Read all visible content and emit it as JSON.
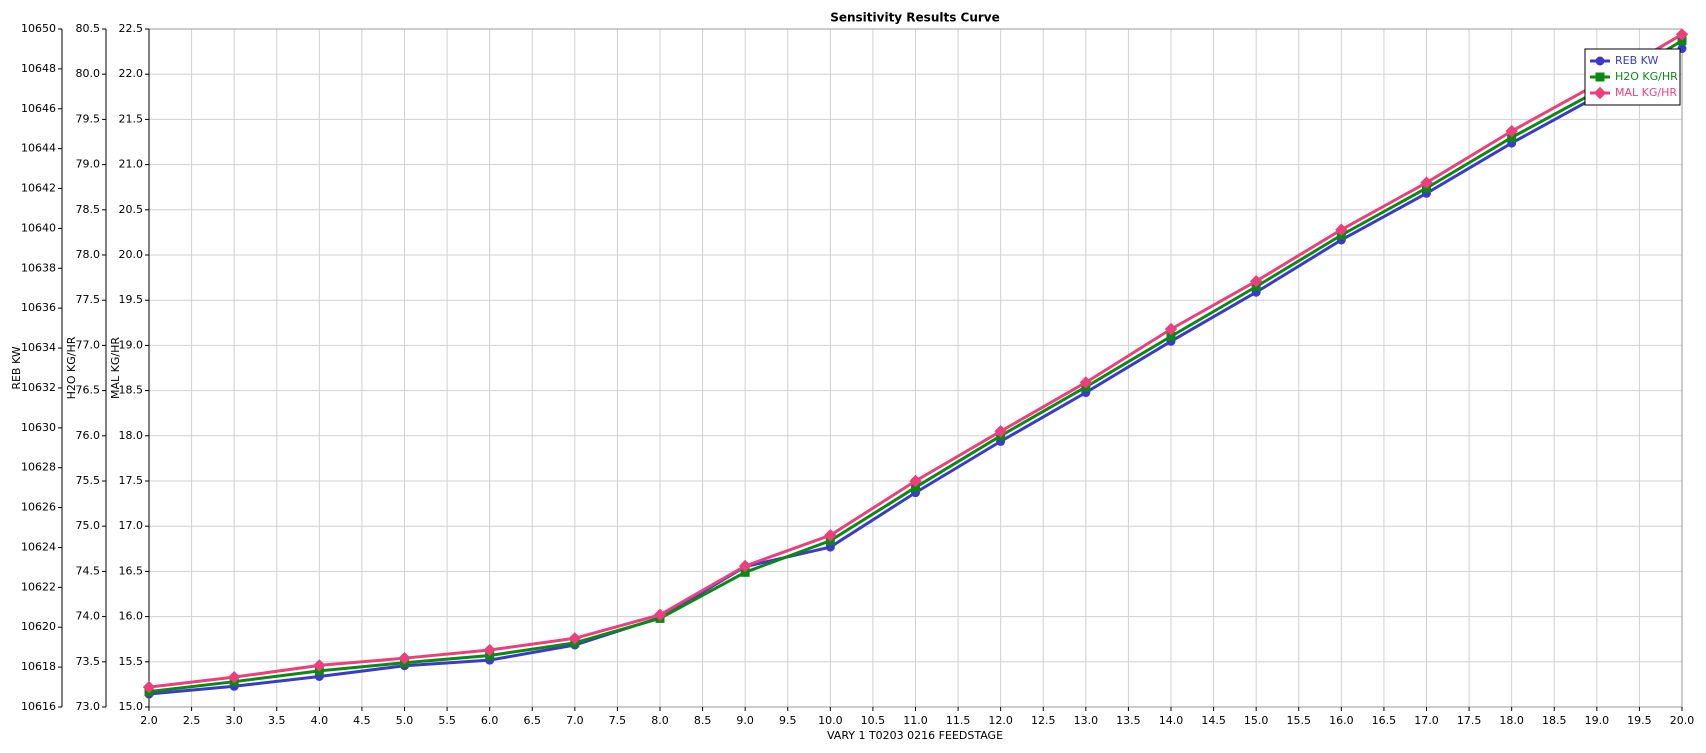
{
  "chart_data": {
    "type": "line",
    "title": "Sensitivity Results Curve",
    "x_label": "VARY  1 T0203 0216 FEEDSTAGE",
    "x": [
      2,
      3,
      4,
      5,
      6,
      7,
      8,
      9,
      10,
      11,
      12,
      13,
      14,
      15,
      16,
      17,
      18,
      19,
      20
    ],
    "xlim": [
      2,
      20
    ],
    "xticks": [
      {
        "value": 2,
        "label": "2.0"
      },
      {
        "value": 2.5,
        "label": "2.5"
      },
      {
        "value": 3,
        "label": "3.0"
      },
      {
        "value": 3.5,
        "label": "3.5"
      },
      {
        "value": 4,
        "label": "4.0"
      },
      {
        "value": 4.5,
        "label": "4.5"
      },
      {
        "value": 5,
        "label": "5.0"
      },
      {
        "value": 5.5,
        "label": "5.5"
      },
      {
        "value": 6,
        "label": "6.0"
      },
      {
        "value": 6.5,
        "label": "6.5"
      },
      {
        "value": 7,
        "label": "7.0"
      },
      {
        "value": 7.5,
        "label": "7.5"
      },
      {
        "value": 8,
        "label": "8.0"
      },
      {
        "value": 8.5,
        "label": "8.5"
      },
      {
        "value": 9,
        "label": "9.0"
      },
      {
        "value": 9.5,
        "label": "9.5"
      },
      {
        "value": 10,
        "label": "10.0"
      },
      {
        "value": 10.5,
        "label": "10.5"
      },
      {
        "value": 11,
        "label": "11.0"
      },
      {
        "value": 11.5,
        "label": "11.5"
      },
      {
        "value": 12,
        "label": "12.0"
      },
      {
        "value": 12.5,
        "label": "12.5"
      },
      {
        "value": 13,
        "label": "13.0"
      },
      {
        "value": 13.5,
        "label": "13.5"
      },
      {
        "value": 14,
        "label": "14.0"
      },
      {
        "value": 14.5,
        "label": "14.5"
      },
      {
        "value": 15,
        "label": "15.0"
      },
      {
        "value": 15.5,
        "label": "15.5"
      },
      {
        "value": 16,
        "label": "16.0"
      },
      {
        "value": 16.5,
        "label": "16.5"
      },
      {
        "value": 17,
        "label": "17.0"
      },
      {
        "value": 17.5,
        "label": "17.5"
      },
      {
        "value": 18,
        "label": "18.0"
      },
      {
        "value": 18.5,
        "label": "18.5"
      },
      {
        "value": 19,
        "label": "19.0"
      },
      {
        "value": 19.5,
        "label": "19.5"
      },
      {
        "value": 20,
        "label": "20.0"
      }
    ],
    "y_label": "REB KW",
    "ylim": [
      10616,
      10650
    ],
    "yticks": [
      10616,
      10618,
      10620,
      10622,
      10624,
      10626,
      10628,
      10630,
      10632,
      10634,
      10636,
      10638,
      10640,
      10642,
      10644,
      10646,
      10648,
      10650
    ],
    "y2_label": "H2O KG/HR",
    "y2lim": [
      73,
      80.5
    ],
    "y2ticks": [
      {
        "value": 73,
        "label": "73.0"
      },
      {
        "value": 73.5,
        "label": "73.5"
      },
      {
        "value": 74,
        "label": "74.0"
      },
      {
        "value": 74.5,
        "label": "74.5"
      },
      {
        "value": 75,
        "label": "75.0"
      },
      {
        "value": 75.5,
        "label": "75.5"
      },
      {
        "value": 76,
        "label": "76.0"
      },
      {
        "value": 76.5,
        "label": "76.5"
      },
      {
        "value": 77,
        "label": "77.0"
      },
      {
        "value": 77.5,
        "label": "77.5"
      },
      {
        "value": 78,
        "label": "78.0"
      },
      {
        "value": 78.5,
        "label": "78.5"
      },
      {
        "value": 79,
        "label": "79.0"
      },
      {
        "value": 79.5,
        "label": "79.5"
      },
      {
        "value": 80,
        "label": "80.0"
      },
      {
        "value": 80.5,
        "label": "80.5"
      }
    ],
    "y3_label": "MAL KG/HR",
    "y3lim": [
      15,
      22.5
    ],
    "y3ticks": [
      {
        "value": 15,
        "label": "15.0"
      },
      {
        "value": 15.5,
        "label": "15.5"
      },
      {
        "value": 16,
        "label": "16.0"
      },
      {
        "value": 16.5,
        "label": "16.5"
      },
      {
        "value": 17,
        "label": "17.0"
      },
      {
        "value": 17.5,
        "label": "17.5"
      },
      {
        "value": 18,
        "label": "18.0"
      },
      {
        "value": 18.5,
        "label": "18.5"
      },
      {
        "value": 19,
        "label": "19.0"
      },
      {
        "value": 19.5,
        "label": "19.5"
      },
      {
        "value": 20,
        "label": "20.0"
      },
      {
        "value": 20.5,
        "label": "20.5"
      },
      {
        "value": 21,
        "label": "21.0"
      },
      {
        "value": 21.5,
        "label": "21.5"
      },
      {
        "value": 22,
        "label": "22.0"
      },
      {
        "value": 22.5,
        "label": "22.5"
      }
    ],
    "grid": true,
    "legend": "top-right",
    "series": [
      {
        "name": "REB KW",
        "color": "#3b3bc4",
        "marker": "circle",
        "axis": "y",
        "values": [
          10616.65,
          10617.04,
          10617.53,
          10618.07,
          10618.35,
          10619.11,
          10620.48,
          10623.04,
          10624.02,
          10626.75,
          10629.32,
          10631.77,
          10634.34,
          10636.8,
          10639.42,
          10641.76,
          10644.28,
          10646.62,
          10649.02
        ]
      },
      {
        "name": "H2O KG/HR",
        "color": "#0a8a14",
        "marker": "square",
        "axis": "y2",
        "values": [
          73.17,
          73.28,
          73.4,
          73.49,
          73.57,
          73.71,
          73.98,
          74.49,
          74.84,
          75.43,
          76.0,
          76.54,
          77.1,
          77.65,
          78.22,
          78.74,
          79.3,
          79.81,
          80.37
        ]
      },
      {
        "name": "MAL KG/HR",
        "color": "#ec3f7c",
        "marker": "diamond",
        "axis": "y3",
        "values": [
          15.22,
          15.33,
          15.46,
          15.54,
          15.63,
          15.76,
          16.02,
          16.56,
          16.9,
          17.5,
          18.05,
          18.59,
          19.18,
          19.71,
          20.28,
          20.8,
          21.37,
          21.89,
          22.44
        ]
      }
    ]
  }
}
